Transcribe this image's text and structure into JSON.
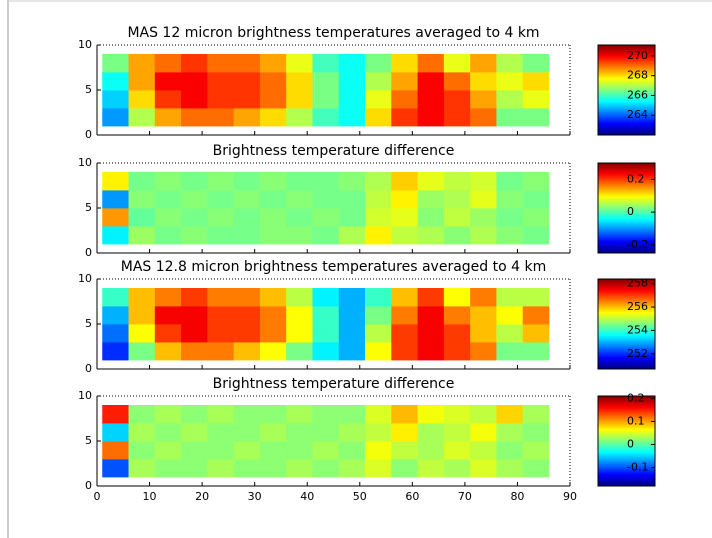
{
  "chart_data": [
    {
      "type": "heatmap",
      "title": "MAS 12 micron brightness temperatures averaged to 4 km",
      "x_bins": [
        1,
        6,
        11,
        16,
        21,
        26,
        31,
        36,
        41,
        46,
        51,
        56,
        61,
        66,
        71,
        76,
        81,
        86
      ],
      "y_bins": [
        1,
        3,
        5,
        7,
        9
      ],
      "z": [
        [
          264.5,
          267,
          268.5,
          269,
          269,
          268.5,
          268,
          267,
          266,
          265.5,
          268,
          269.5,
          270,
          269.5,
          269,
          266.5,
          266.5
        ],
        [
          265,
          268,
          269.5,
          270,
          269.5,
          269.5,
          269,
          268,
          266.5,
          265.5,
          267.5,
          269,
          270,
          269.5,
          268.5,
          267,
          267.5
        ],
        [
          265.5,
          268.5,
          270,
          270,
          269.5,
          269.5,
          269,
          268,
          266.5,
          265.5,
          267,
          268.5,
          270,
          269,
          268,
          267.5,
          268
        ],
        [
          266.5,
          268.5,
          269,
          269.5,
          269,
          269,
          268.5,
          267.5,
          266,
          265.5,
          266.5,
          268,
          269,
          267.5,
          268.5,
          267,
          266.5
        ]
      ],
      "xlim": [
        0,
        90
      ],
      "ylim": [
        0,
        10
      ],
      "xticks": [
        0,
        10,
        20,
        30,
        40,
        50,
        60,
        70,
        80,
        90
      ],
      "yticks": [
        0,
        5,
        10
      ],
      "xtick_labels": false,
      "colormap": "jet",
      "clim": [
        262,
        271.1
      ],
      "colorbar_ticks": [
        264,
        266,
        268,
        270
      ]
    },
    {
      "type": "heatmap",
      "title": "Brightness temperature difference",
      "x_bins": [
        1,
        6,
        11,
        16,
        21,
        26,
        31,
        36,
        41,
        46,
        51,
        56,
        61,
        66,
        71,
        76,
        81,
        86
      ],
      "y_bins": [
        1,
        3,
        5,
        7,
        9
      ],
      "z": [
        [
          -0.05,
          0.04,
          0.02,
          0.03,
          0.02,
          0.02,
          0.03,
          0.03,
          0.02,
          0.05,
          0.1,
          0.06,
          0.05,
          0.03,
          0.05,
          0.03,
          0.02
        ],
        [
          0.15,
          0.01,
          0.03,
          0.02,
          0.03,
          0.02,
          0.03,
          0.02,
          0.03,
          0.02,
          0.07,
          0.08,
          0.03,
          0.06,
          0.04,
          0.02,
          0.03
        ],
        [
          -0.1,
          0.03,
          0.02,
          0.03,
          0.02,
          0.03,
          0.02,
          0.03,
          0.02,
          0.02,
          0.06,
          0.1,
          0.04,
          0.05,
          0.08,
          0.03,
          0.02
        ],
        [
          0.1,
          0.02,
          0.03,
          0.02,
          0.03,
          0.02,
          0.03,
          0.02,
          0.02,
          0.03,
          0.05,
          0.12,
          0.08,
          0.06,
          0.07,
          0.02,
          0.03
        ]
      ],
      "xlim": [
        0,
        90
      ],
      "ylim": [
        0,
        10
      ],
      "xticks": [
        0,
        10,
        20,
        30,
        40,
        50,
        60,
        70,
        80,
        90
      ],
      "yticks": [
        0,
        5,
        10
      ],
      "xtick_labels": false,
      "colormap": "jet",
      "clim": [
        -0.25,
        0.3
      ],
      "colorbar_ticks": [
        -0.2,
        0,
        0.2
      ]
    },
    {
      "type": "heatmap",
      "title": "MAS 12.8 micron brightness temperatures averaged to 4 km",
      "x_bins": [
        1,
        6,
        11,
        16,
        21,
        26,
        31,
        36,
        41,
        46,
        51,
        56,
        61,
        66,
        71,
        76,
        81,
        86
      ],
      "y_bins": [
        1,
        3,
        5,
        7,
        9
      ],
      "z": [
        [
          252,
          254.5,
          256,
          256.5,
          256.5,
          256,
          255.5,
          254.5,
          253.5,
          253,
          255.5,
          257,
          257.5,
          257,
          256.5,
          254.5,
          254.5
        ],
        [
          252.5,
          255.5,
          257,
          257.5,
          257,
          257,
          256.5,
          255.5,
          254,
          253,
          255,
          257,
          257.5,
          257,
          256,
          255,
          256
        ],
        [
          253,
          256,
          257.5,
          257.5,
          257,
          257,
          256.5,
          255.5,
          254,
          253,
          254.5,
          256.5,
          257.5,
          256.5,
          256,
          255.5,
          256.5
        ],
        [
          254,
          256,
          256.5,
          257,
          256.5,
          256.5,
          256,
          255,
          253.5,
          253,
          254,
          256,
          257,
          255.5,
          256.5,
          255,
          255
        ]
      ],
      "xlim": [
        0,
        90
      ],
      "ylim": [
        0,
        10
      ],
      "xticks": [
        0,
        10,
        20,
        30,
        40,
        50,
        60,
        70,
        80,
        90
      ],
      "yticks": [
        0,
        5,
        10
      ],
      "xtick_labels": false,
      "colormap": "jet",
      "clim": [
        250.7,
        258.4
      ],
      "colorbar_ticks": [
        252,
        254,
        256,
        258
      ]
    },
    {
      "type": "heatmap",
      "title": "Brightness temperature difference",
      "x_bins": [
        1,
        6,
        11,
        16,
        21,
        26,
        31,
        36,
        41,
        46,
        51,
        56,
        61,
        66,
        71,
        76,
        81,
        86
      ],
      "y_bins": [
        1,
        3,
        5,
        7,
        9
      ],
      "z": [
        [
          -0.1,
          0.03,
          0.02,
          0.02,
          0.03,
          0.02,
          0.02,
          0.03,
          0.02,
          0.03,
          0.05,
          0.02,
          0.04,
          0.03,
          0.05,
          0.03,
          0.02
        ],
        [
          0.12,
          0.02,
          0.03,
          0.02,
          0.02,
          0.03,
          0.02,
          0.02,
          0.03,
          0.02,
          0.06,
          0.04,
          0.03,
          0.05,
          0.04,
          0.02,
          0.03
        ],
        [
          -0.05,
          0.03,
          0.02,
          0.03,
          0.02,
          0.02,
          0.03,
          0.02,
          0.02,
          0.03,
          0.04,
          0.07,
          0.03,
          0.04,
          0.06,
          0.03,
          0.02
        ],
        [
          0.15,
          0.02,
          0.03,
          0.02,
          0.03,
          0.02,
          0.02,
          0.03,
          0.02,
          0.02,
          0.05,
          0.09,
          0.06,
          0.05,
          0.04,
          0.08,
          0.03
        ]
      ],
      "xlim": [
        0,
        90
      ],
      "ylim": [
        0,
        10
      ],
      "xticks": [
        0,
        10,
        20,
        30,
        40,
        50,
        60,
        70,
        80,
        90
      ],
      "yticks": [
        0,
        5,
        10
      ],
      "xtick_labels": true,
      "colormap": "jet",
      "clim": [
        -0.18,
        0.21
      ],
      "colorbar_ticks": [
        -0.1,
        0,
        0.1,
        0.2
      ]
    }
  ]
}
